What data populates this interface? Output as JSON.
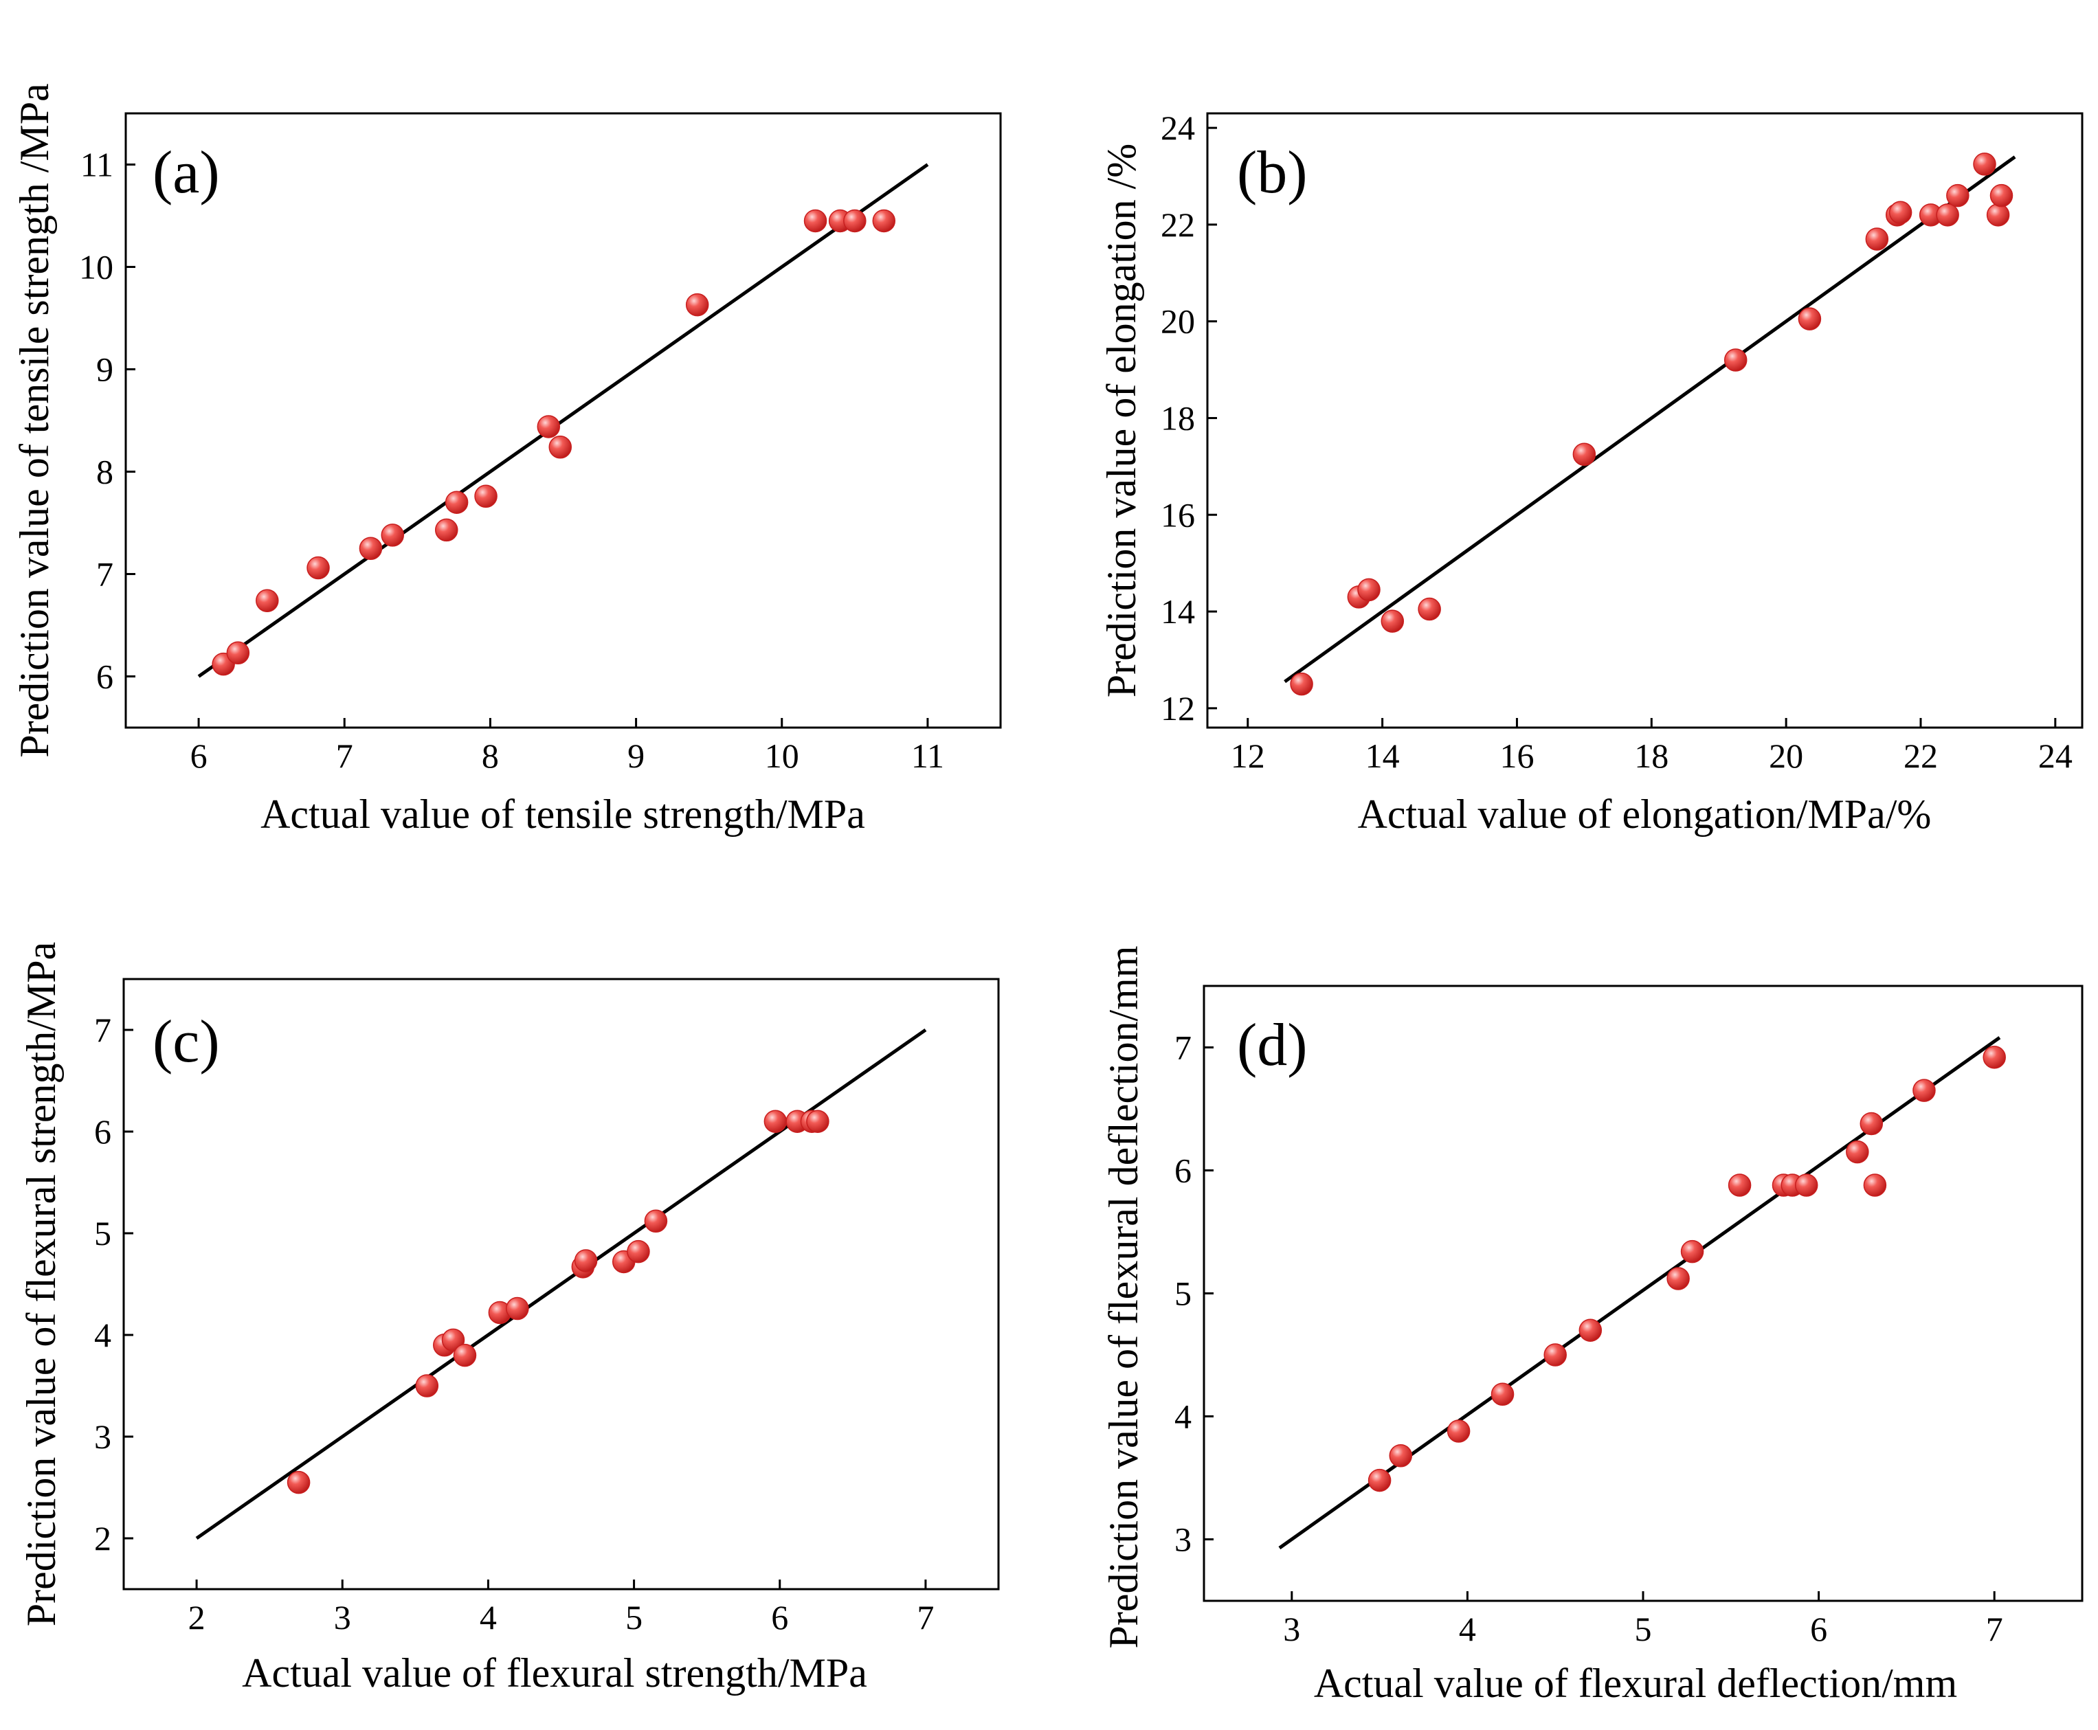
{
  "colors": {
    "marker": "#e8413c",
    "marker_dark": "#b81414",
    "marker_highlight": "#ffd6d6",
    "line": "#000000"
  },
  "chart_data": [
    {
      "type": "scatter",
      "panel": "(a)",
      "xlabel": "Actual value of tensile strength/MPa",
      "ylabel": "Prediction value of tensile strength /MPa",
      "xlim": [
        5.5,
        11.5
      ],
      "ylim": [
        5.5,
        11.5
      ],
      "xticks": [
        6,
        7,
        8,
        9,
        10,
        11
      ],
      "yticks": [
        6,
        7,
        8,
        9,
        10,
        11
      ],
      "fit_line": [
        [
          6,
          6
        ],
        [
          11,
          11
        ]
      ],
      "points": [
        [
          6.17,
          6.12
        ],
        [
          6.27,
          6.23
        ],
        [
          6.47,
          6.74
        ],
        [
          6.82,
          7.06
        ],
        [
          7.18,
          7.25
        ],
        [
          7.33,
          7.38
        ],
        [
          7.7,
          7.43
        ],
        [
          7.77,
          7.7
        ],
        [
          7.97,
          7.76
        ],
        [
          8.4,
          8.44
        ],
        [
          8.48,
          8.24
        ],
        [
          9.42,
          9.63
        ],
        [
          10.23,
          10.45
        ],
        [
          10.4,
          10.45
        ],
        [
          10.5,
          10.45
        ],
        [
          10.7,
          10.45
        ]
      ]
    },
    {
      "type": "scatter",
      "panel": "(b)",
      "xlabel": "Actual value of elongation/MPa/%",
      "ylabel": "Prediction value of elongation /%",
      "xlim": [
        11.4,
        24.4
      ],
      "ylim": [
        11.6,
        24.3
      ],
      "xticks": [
        12,
        14,
        16,
        18,
        20,
        22,
        24
      ],
      "yticks": [
        12,
        14,
        16,
        18,
        20,
        22,
        24
      ],
      "fit_line": [
        [
          12.55,
          12.55
        ],
        [
          23.4,
          23.4
        ]
      ],
      "points": [
        [
          12.8,
          12.5
        ],
        [
          13.65,
          14.3
        ],
        [
          13.8,
          14.45
        ],
        [
          14.15,
          13.8
        ],
        [
          14.7,
          14.05
        ],
        [
          17.0,
          17.25
        ],
        [
          19.25,
          19.2
        ],
        [
          20.35,
          20.05
        ],
        [
          21.35,
          21.7
        ],
        [
          21.65,
          22.2
        ],
        [
          21.7,
          22.25
        ],
        [
          22.15,
          22.2
        ],
        [
          22.4,
          22.2
        ],
        [
          22.55,
          22.6
        ],
        [
          22.95,
          23.25
        ],
        [
          23.15,
          22.2
        ],
        [
          23.2,
          22.6
        ]
      ]
    },
    {
      "type": "scatter",
      "panel": "(c)",
      "xlabel": "Actual value of flexural strength/MPa",
      "ylabel": "Prediction value of flexural strength/MPa",
      "xlim": [
        1.5,
        7.5
      ],
      "ylim": [
        1.5,
        7.5
      ],
      "xticks": [
        2,
        3,
        4,
        5,
        6,
        7
      ],
      "yticks": [
        2,
        3,
        4,
        5,
        6,
        7
      ],
      "fit_line": [
        [
          2,
          2
        ],
        [
          7,
          7
        ]
      ],
      "points": [
        [
          2.7,
          2.55
        ],
        [
          3.58,
          3.5
        ],
        [
          3.7,
          3.9
        ],
        [
          3.76,
          3.95
        ],
        [
          3.84,
          3.8
        ],
        [
          4.08,
          4.22
        ],
        [
          4.2,
          4.26
        ],
        [
          4.65,
          4.67
        ],
        [
          4.67,
          4.73
        ],
        [
          4.93,
          4.72
        ],
        [
          5.03,
          4.82
        ],
        [
          5.15,
          5.12
        ],
        [
          5.97,
          6.1
        ],
        [
          6.12,
          6.1
        ],
        [
          6.22,
          6.1
        ],
        [
          6.26,
          6.1
        ]
      ]
    },
    {
      "type": "scatter",
      "panel": "(d)",
      "xlabel": "Actual value of flexural deflection/mm",
      "ylabel": "Prediction value of flexural deflection/mm",
      "xlim": [
        2.5,
        7.5
      ],
      "ylim": [
        2.5,
        7.5
      ],
      "xticks": [
        3,
        4,
        5,
        6,
        7
      ],
      "yticks": [
        3,
        4,
        5,
        6,
        7
      ],
      "fit_line": [
        [
          2.93,
          2.93
        ],
        [
          7.03,
          7.08
        ]
      ],
      "points": [
        [
          3.5,
          3.48
        ],
        [
          3.62,
          3.68
        ],
        [
          3.95,
          3.88
        ],
        [
          4.2,
          4.18
        ],
        [
          4.5,
          4.5
        ],
        [
          4.7,
          4.7
        ],
        [
          5.2,
          5.12
        ],
        [
          5.28,
          5.34
        ],
        [
          5.55,
          5.88
        ],
        [
          5.8,
          5.88
        ],
        [
          5.85,
          5.88
        ],
        [
          5.93,
          5.88
        ],
        [
          6.22,
          6.15
        ],
        [
          6.3,
          6.38
        ],
        [
          6.32,
          5.88
        ],
        [
          6.6,
          6.65
        ],
        [
          7.0,
          6.92
        ]
      ]
    }
  ]
}
